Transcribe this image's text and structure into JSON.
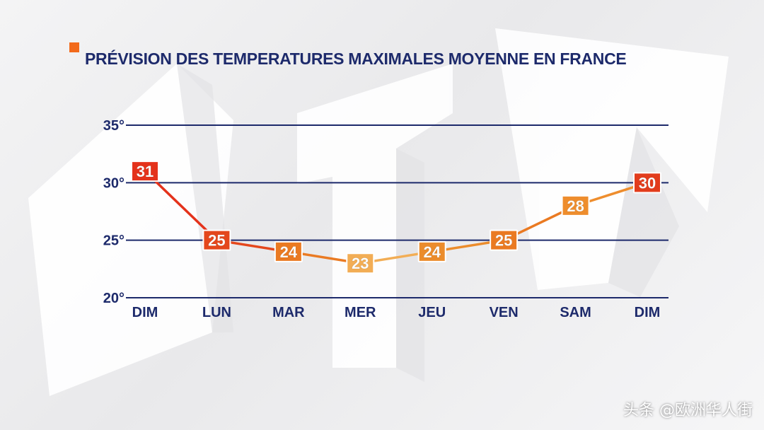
{
  "chart_data": {
    "type": "line",
    "title": "PRÉVISION DES TEMPERATURES MAXIMALES MOYENNE EN FRANCE",
    "categories": [
      "DIM",
      "LUN",
      "MAR",
      "MER",
      "JEU",
      "VEN",
      "SAM",
      "DIM"
    ],
    "values": [
      31,
      25,
      24,
      23,
      24,
      25,
      28,
      30
    ],
    "value_labels": [
      "31",
      "25",
      "24",
      "23",
      "24",
      "25",
      "28",
      "30"
    ],
    "point_colors": [
      "#e4321b",
      "#e4471c",
      "#ea7a22",
      "#f2ad55",
      "#eb8c2c",
      "#ea7a22",
      "#ee8d2d",
      "#e23c1c"
    ],
    "ylim": [
      20,
      35
    ],
    "yticks": [
      20,
      25,
      30,
      35
    ],
    "ytick_labels": [
      "20°",
      "25°",
      "30°",
      "35°"
    ],
    "grid": true,
    "xlabel": "",
    "ylabel": ""
  },
  "colors": {
    "title": "#1d2a6b",
    "grid": "#1d2a6b",
    "accent": "#f26a1b"
  },
  "watermark": "头条 @欧洲华人街"
}
